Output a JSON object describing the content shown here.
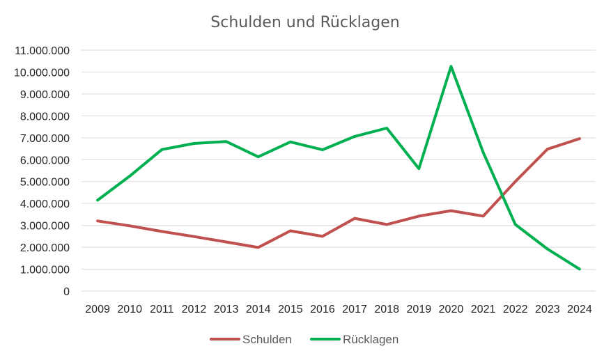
{
  "chart_data": {
    "type": "line",
    "title": "Schulden und Rücklagen",
    "xlabel": "",
    "ylabel": "",
    "categories": [
      "2009",
      "2010",
      "2011",
      "2012",
      "2013",
      "2014",
      "2015",
      "2016",
      "2017",
      "2018",
      "2019",
      "2020",
      "2021",
      "2022",
      "2023",
      "2024"
    ],
    "ylim": [
      0,
      11000000
    ],
    "yticks": [
      0,
      1000000,
      2000000,
      3000000,
      4000000,
      5000000,
      6000000,
      7000000,
      8000000,
      9000000,
      10000000,
      11000000
    ],
    "ytick_labels": [
      "0",
      "1.000.000",
      "2.000.000",
      "3.000.000",
      "4.000.000",
      "5.000.000",
      "6.000.000",
      "7.000.000",
      "8.000.000",
      "9.000.000",
      "10.000.000",
      "11.000.000"
    ],
    "grid": true,
    "legend_position": "bottom",
    "series": [
      {
        "name": "Schulden",
        "color": "#c0504d",
        "values": [
          3200000,
          2980000,
          2720000,
          2490000,
          2240000,
          1990000,
          2750000,
          2500000,
          3320000,
          3040000,
          3420000,
          3670000,
          3420000,
          5000000,
          6480000,
          6960000
        ]
      },
      {
        "name": "Rücklagen",
        "color": "#00b050",
        "values": [
          4150000,
          5250000,
          6460000,
          6740000,
          6830000,
          6130000,
          6810000,
          6450000,
          7060000,
          7440000,
          5590000,
          10260000,
          6330000,
          3040000,
          1920000,
          1000000
        ]
      }
    ]
  }
}
